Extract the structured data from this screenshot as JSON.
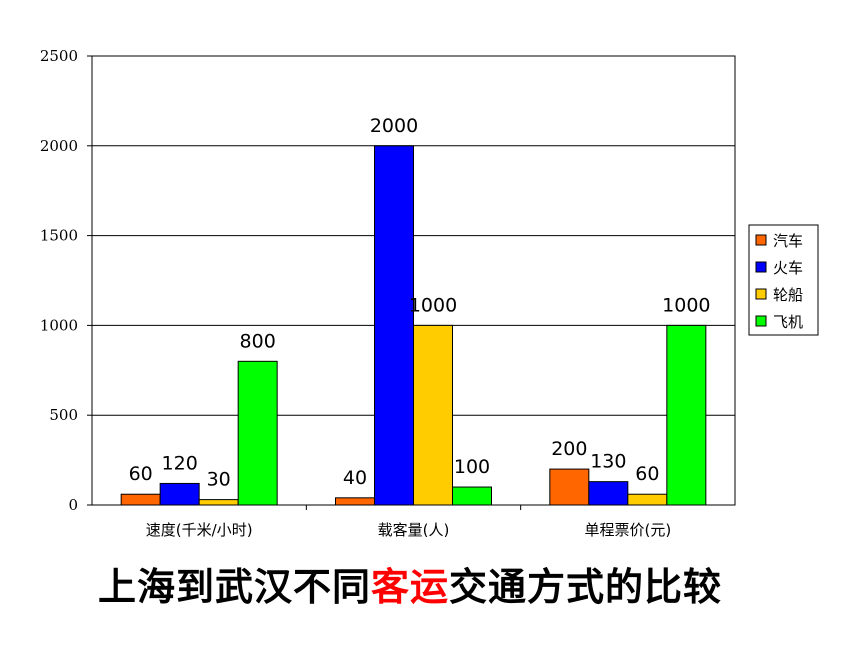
{
  "chart_data": {
    "type": "bar",
    "categories": [
      "速度(千米/小时)",
      "载客量(人)",
      "单程票价(元)"
    ],
    "series": [
      {
        "name": "汽车",
        "color": "#ff6600",
        "values": [
          60,
          40,
          200
        ]
      },
      {
        "name": "火车",
        "color": "#0000ff",
        "values": [
          120,
          2000,
          130
        ]
      },
      {
        "name": "轮船",
        "color": "#ffcc00",
        "values": [
          30,
          1000,
          60
        ]
      },
      {
        "name": "飞机",
        "color": "#00ff00",
        "values": [
          800,
          100,
          1000
        ]
      }
    ],
    "ylim": [
      0,
      2500
    ],
    "yticks": [
      0,
      500,
      1000,
      1500,
      2000,
      2500
    ],
    "grid": true,
    "legend": "right"
  },
  "caption": {
    "part1": "上海到武汉不同",
    "highlight": "客运",
    "part2": "交通方式的比较",
    "highlight_color": "#ff0000"
  }
}
